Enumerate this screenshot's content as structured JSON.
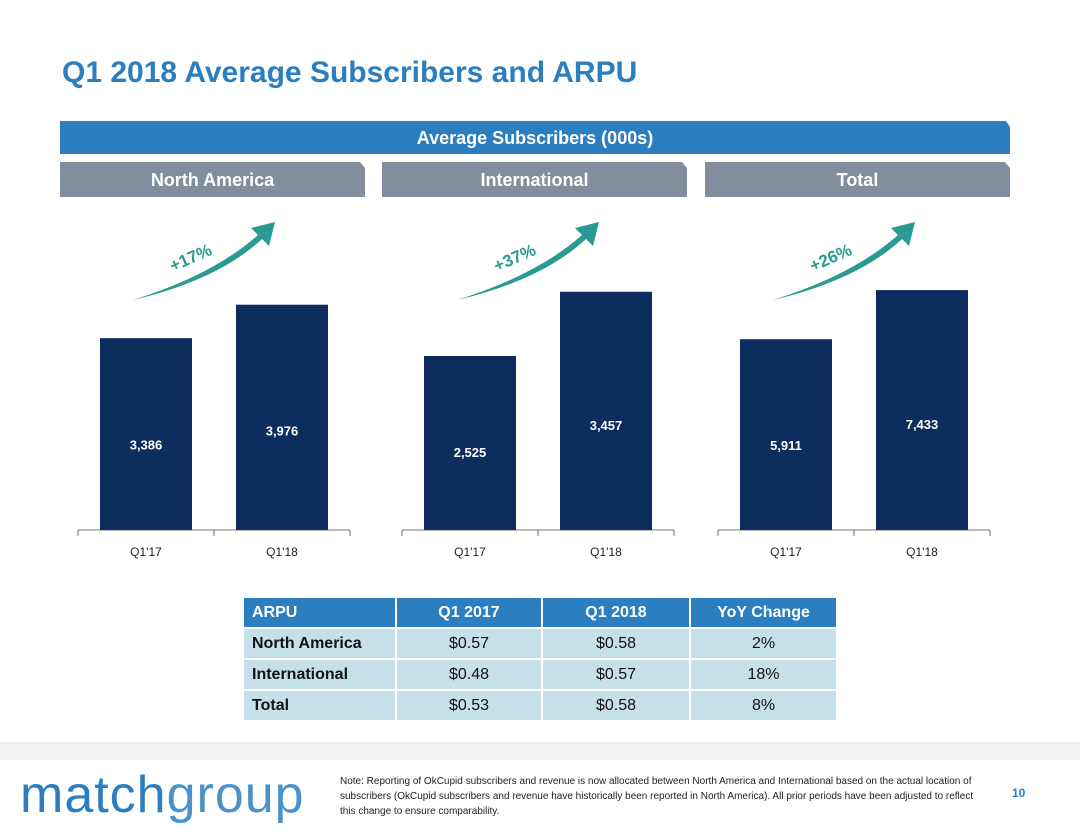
{
  "slide": {
    "title": "Q1 2018 Average Subscribers and ARPU",
    "banner": "Average Subscribers (000s)",
    "page_number": "10",
    "note": "Note: Reporting of OkCupid subscribers and revenue is now allocated between North America and International based on the actual location of subscribers (OkCupid subscribers and revenue have historically been reported in North America). All prior periods have been adjusted to reflect this change to ensure comparability.",
    "logo": {
      "part1": "match",
      "part2": "group"
    }
  },
  "colors": {
    "bar": "#0d2d5e",
    "accent": "#2b7fc0",
    "header_gray": "#828e9e",
    "arrow": "#2a9a93",
    "table_cell": "#c6e0ea"
  },
  "chart_data": [
    {
      "type": "bar",
      "title": "North America",
      "categories": [
        "Q1'17",
        "Q1'18"
      ],
      "values": [
        3386,
        3976
      ],
      "labels": [
        "3,386",
        "3,976"
      ],
      "growth": "+17%",
      "ylim": [
        0,
        4500
      ]
    },
    {
      "type": "bar",
      "title": "International",
      "categories": [
        "Q1'17",
        "Q1'18"
      ],
      "values": [
        2525,
        3457
      ],
      "labels": [
        "2,525",
        "3,457"
      ],
      "growth": "+37%",
      "ylim": [
        0,
        3700
      ]
    },
    {
      "type": "bar",
      "title": "Total",
      "categories": [
        "Q1'17",
        "Q1'18"
      ],
      "values": [
        5911,
        7433
      ],
      "labels": [
        "5,911",
        "7,433"
      ],
      "growth": "+26%",
      "ylim": [
        0,
        7900
      ]
    }
  ],
  "arpu_table": {
    "headers": [
      "ARPU",
      "Q1 2017",
      "Q1 2018",
      "YoY Change"
    ],
    "rows": [
      [
        "North America",
        "$0.57",
        "$0.58",
        "2%"
      ],
      [
        "International",
        "$0.48",
        "$0.57",
        "18%"
      ],
      [
        "Total",
        "$0.53",
        "$0.58",
        "8%"
      ]
    ]
  }
}
